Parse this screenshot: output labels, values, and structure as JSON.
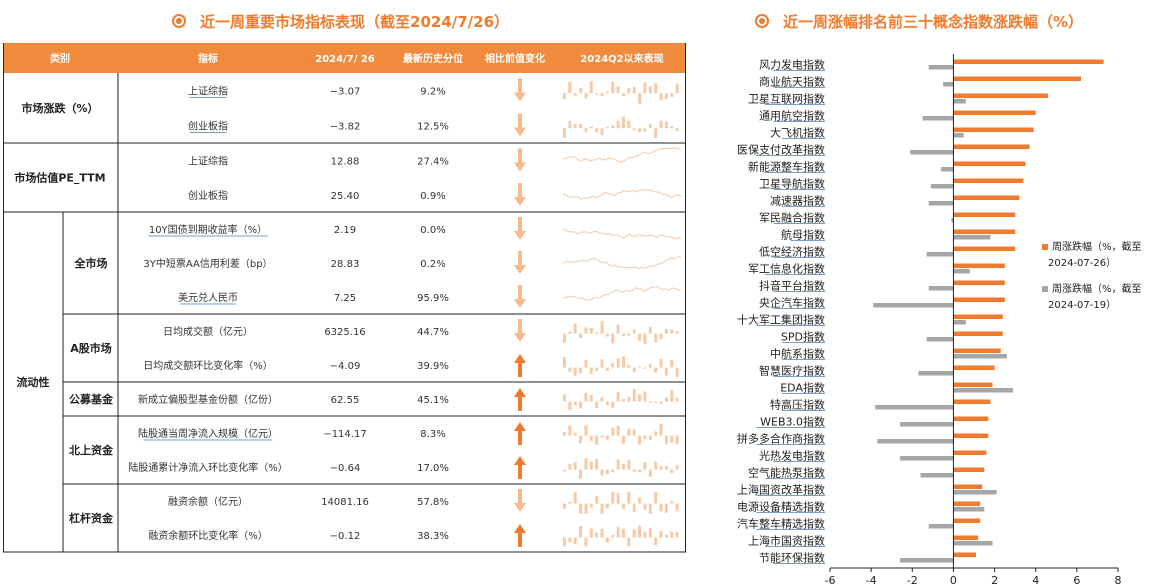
{
  "titles": {
    "left": "近一周重要市场指标表现（截至2024/7/26）",
    "right": "近一周涨幅排名前三十概念指数涨跌幅（%）"
  },
  "colors": {
    "orange": "#f07b2c",
    "header_bg": "#f08a3c",
    "gray": "#a6a6a6",
    "spark_light": "#f7c9a6"
  },
  "table": {
    "headers": [
      "类别",
      "指标",
      "2024/7/ 26",
      "最新历史分位",
      "相比前值变化",
      "2024Q2以来表现"
    ],
    "groups": [
      {
        "label": "市场涨跌（%）",
        "rows": [
          0,
          1
        ]
      },
      {
        "label": "市场估值PE_TTM",
        "rows": [
          2,
          3
        ]
      },
      {
        "label": "流动性",
        "sub": [
          {
            "label": "全市场",
            "rows": [
              4,
              5,
              6
            ]
          },
          {
            "label": "A股市场",
            "rows": [
              7,
              8
            ]
          },
          {
            "label": "公募基金",
            "rows": [
              9
            ]
          },
          {
            "label": "北上资金",
            "rows": [
              10,
              11
            ]
          },
          {
            "label": "杠杆资金",
            "rows": [
              12,
              13
            ]
          }
        ]
      }
    ],
    "rows": [
      {
        "name": "上证综指",
        "value": "−3.07",
        "pct": "9.2%",
        "dir": "down",
        "spark": "bar",
        "link": true
      },
      {
        "name": "创业板指",
        "value": "−3.82",
        "pct": "12.5%",
        "dir": "down",
        "spark": "bar",
        "link": true
      },
      {
        "name": "上证综指",
        "value": "12.88",
        "pct": "27.4%",
        "dir": "down",
        "spark": "line",
        "link": false
      },
      {
        "name": "创业板指",
        "value": "25.40",
        "pct": "0.9%",
        "dir": "down",
        "spark": "line",
        "link": false
      },
      {
        "name": "10Y国债到期收益率（%）",
        "value": "2.19",
        "pct": "0.0%",
        "dir": "down",
        "spark": "line",
        "link": true
      },
      {
        "name": "3Y中短票AA信用利差（bp）",
        "value": "28.83",
        "pct": "0.2%",
        "dir": "down",
        "spark": "line",
        "link": false
      },
      {
        "name": "美元兑人民币",
        "value": "7.25",
        "pct": "95.9%",
        "dir": "down",
        "spark": "line",
        "link": true
      },
      {
        "name": "日均成交额（亿元）",
        "value": "6325.16",
        "pct": "44.7%",
        "dir": "down",
        "spark": "bar",
        "link": false
      },
      {
        "name": "日均成交额环比变化率（%）",
        "value": "−4.09",
        "pct": "39.9%",
        "dir": "up",
        "spark": "bar",
        "link": false
      },
      {
        "name": "新成立偏股型基金份额（亿份）",
        "value": "62.55",
        "pct": "45.1%",
        "dir": "up",
        "spark": "bar",
        "link": false
      },
      {
        "name": "陆股通当周净流入规模（亿元）",
        "value": "−114.17",
        "pct": "8.3%",
        "dir": "up",
        "spark": "bar",
        "link": true
      },
      {
        "name": "陆股通累计净流入环比变化率（%）",
        "value": "−0.64",
        "pct": "17.0%",
        "dir": "up",
        "spark": "bar",
        "link": false
      },
      {
        "name": "融资余额（亿元）",
        "value": "14081.16",
        "pct": "57.8%",
        "dir": "down",
        "spark": "bar",
        "link": false
      },
      {
        "name": "融资余额环比变化率（%）",
        "value": "−0.12",
        "pct": "38.3%",
        "dir": "up",
        "spark": "bar",
        "link": false
      }
    ]
  },
  "chart_data": {
    "type": "bar",
    "orientation": "horizontal",
    "categories": [
      "风力发电指数",
      "商业航天指数",
      "卫星互联网指数",
      "通用航空指数",
      "大飞机指数",
      "医保支付改革指数",
      "新能源整车指数",
      "卫星导航指数",
      "减速器指数",
      "军民融合指数",
      "航母指数",
      "低空经济指数",
      "军工信息化指数",
      "抖音平台指数",
      "央企汽车指数",
      "十大军工集团指数",
      "SPD指数",
      "中航系指数",
      "智慧医疗指数",
      "EDA指数",
      "特高压指数",
      "WEB3.0指数",
      "拼多多合作商指数",
      "光热发电指数",
      "空气能热泵指数",
      "上海国资改革指数",
      "电源设备精选指数",
      "汽车整车精选指数",
      "上海市国资指数",
      "节能环保指数"
    ],
    "series": [
      {
        "name": "周涨跌幅（%，截至2024-07-26）",
        "color": "#f07b2c",
        "values": [
          7.3,
          6.2,
          4.6,
          4.0,
          3.9,
          3.7,
          3.5,
          3.4,
          3.2,
          3.0,
          3.0,
          3.0,
          2.5,
          2.5,
          2.5,
          2.4,
          2.4,
          2.3,
          2.0,
          1.9,
          1.8,
          1.7,
          1.7,
          1.6,
          1.5,
          1.4,
          1.3,
          1.3,
          1.2,
          1.1
        ]
      },
      {
        "name": "周涨跌幅（%，截至2024-07-19）",
        "color": "#a6a6a6",
        "values": [
          -1.2,
          -0.5,
          0.6,
          -1.5,
          0.5,
          -2.1,
          -0.6,
          -1.1,
          -1.2,
          -0.1,
          1.8,
          -1.3,
          0.8,
          -1.2,
          -3.9,
          0.6,
          -1.3,
          2.6,
          -1.7,
          2.9,
          -3.8,
          -2.6,
          -3.7,
          -2.6,
          -1.6,
          2.1,
          1.5,
          -1.2,
          1.9,
          -2.6
        ]
      }
    ],
    "xlim": [
      -6,
      8
    ],
    "xticks": [
      "-6",
      "-4",
      "-2",
      "0",
      "2",
      "4",
      "6",
      "8"
    ],
    "legend": {
      "position": "right",
      "entries": [
        [
          "周涨跌幅（%，截至",
          "2024-07-26）"
        ],
        [
          "周涨跌幅（%，截至",
          "2024-07-19）"
        ]
      ]
    }
  }
}
